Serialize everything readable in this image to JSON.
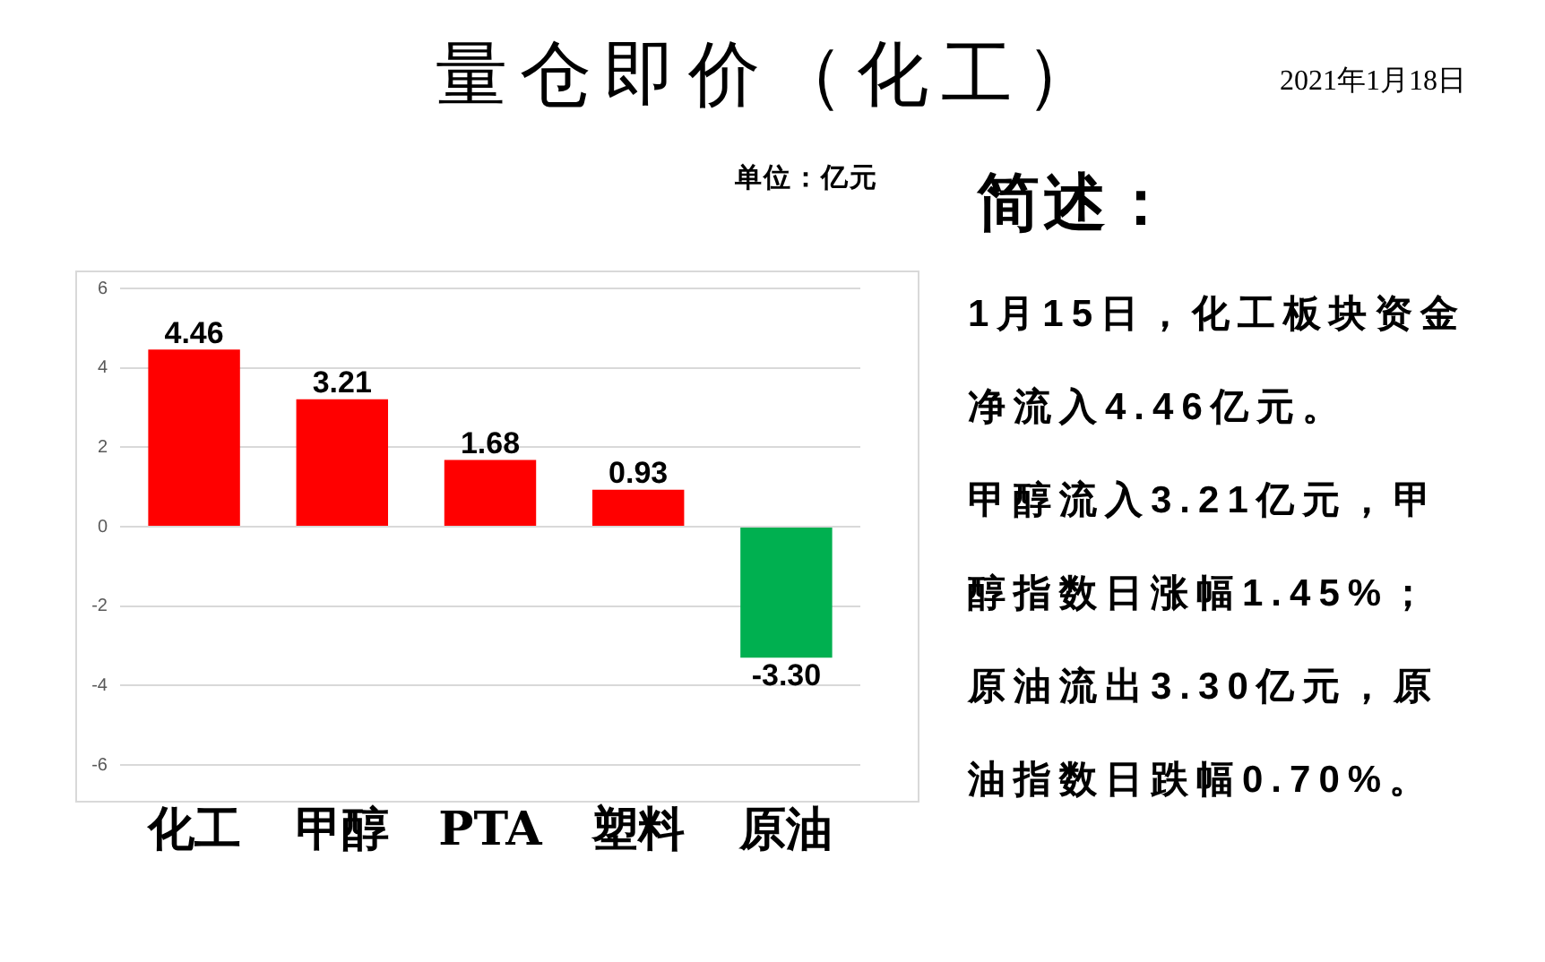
{
  "chart_data": {
    "type": "bar",
    "title": "量仓即价（化工）",
    "categories": [
      "化工",
      "甲醇",
      "PTA",
      "塑料",
      "原油"
    ],
    "values": [
      4.46,
      3.21,
      1.68,
      0.93,
      -3.3
    ],
    "colors": [
      "#ff0000",
      "#ff0000",
      "#ff0000",
      "#ff0000",
      "#00b050"
    ],
    "value_labels": [
      "4.46",
      "3.21",
      "1.68",
      "0.93",
      "-3.30"
    ],
    "ylim": [
      -6,
      6
    ],
    "yticks": [
      -6,
      -4,
      -2,
      0,
      2,
      4,
      6
    ],
    "grid": "y",
    "annotations": [
      "单位：亿元",
      "简述：",
      "1月15日，化工板块资金净流入4.46亿元。",
      "甲醇流入3.21亿元，甲醇指数日涨幅1.45%；",
      "原油流出3.30亿元，原油指数日跌幅0.70%。",
      "2021年1月18日"
    ]
  }
}
